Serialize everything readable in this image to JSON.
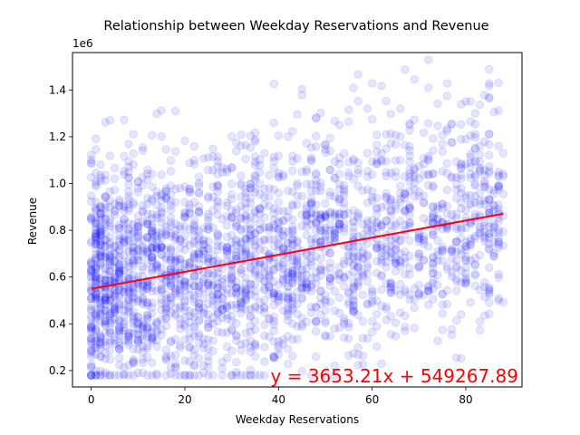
{
  "chart_data": {
    "type": "scatter",
    "title": "Relationship between Weekday Reservations and Revenue",
    "xlabel": "Weekday Reservations",
    "ylabel": "Revenue",
    "y_offset_label": "1e6",
    "xlim": [
      -4,
      92
    ],
    "ylim": [
      0.13,
      1.56
    ],
    "x_ticks": [
      0,
      20,
      40,
      60,
      80
    ],
    "x_tick_labels": [
      "0",
      "20",
      "40",
      "60",
      "80"
    ],
    "y_ticks": [
      0.2,
      0.4,
      0.6,
      0.8,
      1.0,
      1.2,
      1.4
    ],
    "y_tick_labels": [
      "0.2",
      "0.4",
      "0.6",
      "0.8",
      "1.0",
      "1.2",
      "1.4"
    ],
    "grid": false,
    "point_color": "#0000ff",
    "point_alpha": 0.1,
    "trend_line": {
      "slope": 3653.21,
      "intercept": 549267.89,
      "x_range": [
        0,
        88
      ],
      "color": "#ff0000"
    },
    "equation_label": "y = 3653.21x + 549267.89",
    "points": {
      "x_range": [
        0,
        88
      ],
      "y_min": 0.18,
      "y_max": 1.53,
      "count": 2600
    }
  }
}
